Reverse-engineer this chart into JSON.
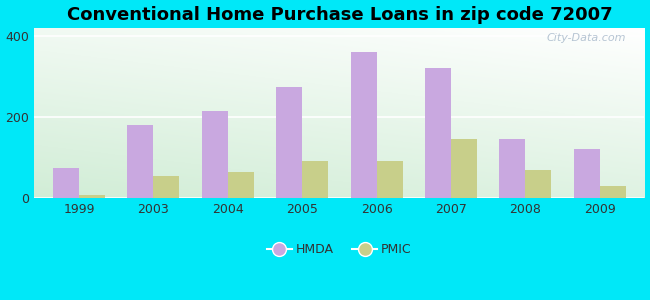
{
  "title": "Conventional Home Purchase Loans in zip code 72007",
  "categories": [
    "1999",
    "2003",
    "2004",
    "2005",
    "2006",
    "2007",
    "2008",
    "2009"
  ],
  "hmda_values": [
    75,
    180,
    215,
    275,
    360,
    320,
    145,
    120
  ],
  "pmic_values": [
    8,
    55,
    65,
    90,
    90,
    145,
    70,
    30
  ],
  "hmda_color": "#c9a8e0",
  "pmic_color": "#c8cf8a",
  "ylim": [
    0,
    420
  ],
  "yticks": [
    0,
    200,
    400
  ],
  "outer_bg": "#00e8f8",
  "bar_width": 0.35,
  "title_fontsize": 13,
  "watermark": "City-Data.com",
  "grad_top_color": "#f0faf8",
  "grad_bottom_color": "#d4edda"
}
